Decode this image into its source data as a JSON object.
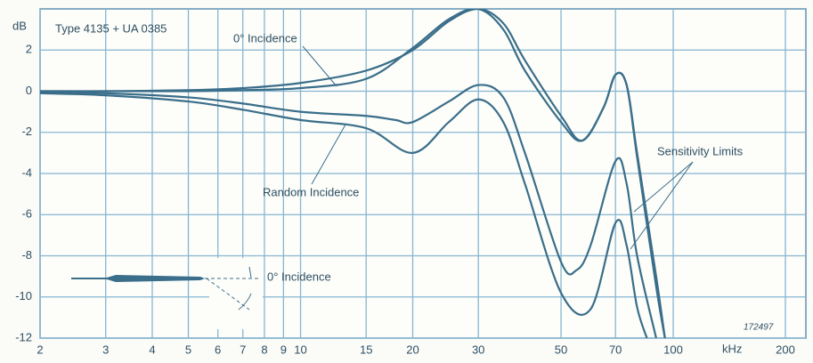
{
  "chart_data": {
    "type": "line",
    "title": "Type 4135 + UA 0385",
    "y_label": "dB",
    "x_label": "kHz",
    "x_log": true,
    "grid": true,
    "color": "#3a6e8a",
    "xlim": [
      2,
      200
    ],
    "xticks": [
      2,
      3,
      4,
      5,
      6,
      7,
      8,
      9,
      10,
      15,
      20,
      30,
      50,
      70,
      100,
      200
    ],
    "ylim": [
      -12,
      4
    ],
    "yticks": [
      2,
      0,
      -2,
      -4,
      -6,
      -8,
      -10,
      -12
    ],
    "series": [
      {
        "x": [
          2,
          3,
          5,
          7,
          10,
          15,
          20,
          25,
          30,
          35,
          40,
          50,
          57,
          65,
          70,
          75,
          80,
          90,
          95
        ],
        "values": [
          0,
          0,
          0.05,
          0.15,
          0.4,
          1.0,
          2.0,
          3.4,
          4.0,
          3.3,
          1.5,
          -1.2,
          -2.4,
          -0.8,
          0.8,
          0.3,
          -3,
          -9,
          -12
        ]
      },
      {
        "x": [
          2,
          3,
          5,
          7,
          10,
          15,
          20,
          25,
          30,
          35,
          40,
          50,
          57,
          65,
          70,
          75,
          80,
          90,
          95
        ],
        "values": [
          0,
          0,
          0,
          0.05,
          0.15,
          0.6,
          2.1,
          3.5,
          4.0,
          3.0,
          1.0,
          -1.5,
          -2.4,
          -0.8,
          0.8,
          0.3,
          -3.2,
          -9.5,
          -12
        ]
      },
      {
        "x": [
          2,
          3,
          5,
          7,
          10,
          15,
          18,
          20,
          25,
          30,
          35,
          40,
          50,
          55,
          60,
          70,
          75,
          80,
          90
        ],
        "values": [
          -0.05,
          -0.1,
          -0.3,
          -0.6,
          -1.0,
          -1.2,
          -1.4,
          -1.5,
          -0.5,
          0.3,
          -0.3,
          -3,
          -8.3,
          -8.7,
          -7.5,
          -3.4,
          -4.5,
          -8,
          -12
        ]
      },
      {
        "x": [
          2,
          3,
          5,
          7,
          10,
          15,
          20,
          25,
          30,
          35,
          40,
          50,
          60,
          70,
          75,
          80,
          85
        ],
        "values": [
          -0.1,
          -0.2,
          -0.5,
          -0.9,
          -1.4,
          -1.8,
          -3.0,
          -1.5,
          -0.4,
          -1.5,
          -4.5,
          -9.8,
          -10.6,
          -6.4,
          -7.5,
          -10.5,
          -12
        ]
      }
    ],
    "annotations": [
      "0° Incidence",
      "Random Incidence",
      "Sensitivity Limits",
      "0° Incidence",
      "θ°",
      "172497"
    ]
  }
}
